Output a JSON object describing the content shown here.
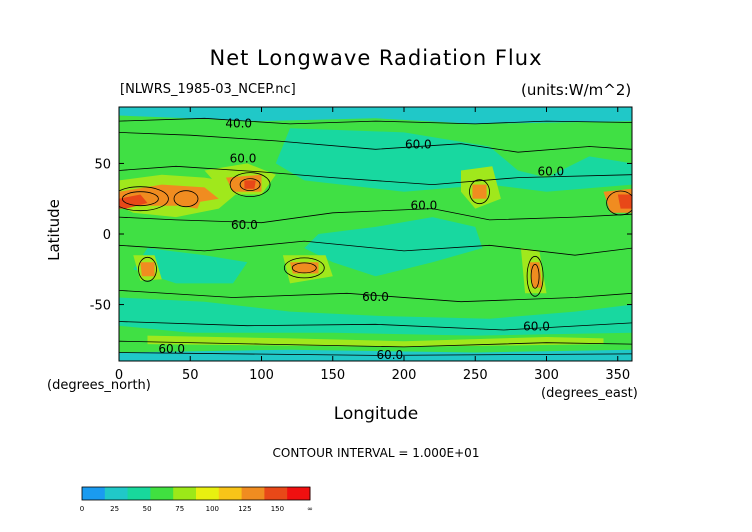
{
  "chart_data": {
    "type": "heatmap",
    "title": "Net Longwave Radiation Flux",
    "file_label": "[NLWRS_1985-03_NCEP.nc]",
    "units_label": "(units:W/m^2)",
    "xlabel": "Longitude",
    "ylabel": "Latitude",
    "x_unit_label": "(degrees_east)",
    "y_unit_label": "(degrees_north)",
    "xlim": [
      0,
      360
    ],
    "ylim": [
      -90,
      90
    ],
    "x_ticks": [
      0,
      50,
      100,
      150,
      200,
      250,
      300,
      350
    ],
    "y_ticks": [
      -50,
      0,
      50
    ],
    "contour_interval_text": "CONTOUR INTERVAL = 1.000E+01",
    "contour_labels": [
      {
        "text": "40.0",
        "lon": 84,
        "lat": 78
      },
      {
        "text": "60.0",
        "lon": 210,
        "lat": 63
      },
      {
        "text": "60.0",
        "lon": 303,
        "lat": 44
      },
      {
        "text": "60.0",
        "lon": 87,
        "lat": 53
      },
      {
        "text": "60.0",
        "lon": 214,
        "lat": 20
      },
      {
        "text": "60.0",
        "lon": 88,
        "lat": 6
      },
      {
        "text": "60.0",
        "lon": 180,
        "lat": -45
      },
      {
        "text": "60.0",
        "lon": 293,
        "lat": -66
      },
      {
        "text": "60.0",
        "lon": 37,
        "lat": -82
      },
      {
        "text": "60.0",
        "lon": 190,
        "lat": -86
      }
    ],
    "colorbar": {
      "tick_labels": [
        "0",
        "25",
        "50",
        "75",
        "100",
        "125",
        "150",
        "∞"
      ],
      "colors": [
        "#1a9bf0",
        "#20c8c8",
        "#18d89c",
        "#40e040",
        "#9ce818",
        "#e8f010",
        "#f8c418",
        "#f08c20",
        "#e84818",
        "#f01010"
      ]
    },
    "palette": {
      "ocean": "#18d8a0",
      "tropics": "#40e044",
      "warm": "#a0e81c",
      "hot": "#f08c20",
      "extreme": "#e84818",
      "cold": "#20c8c8"
    }
  }
}
